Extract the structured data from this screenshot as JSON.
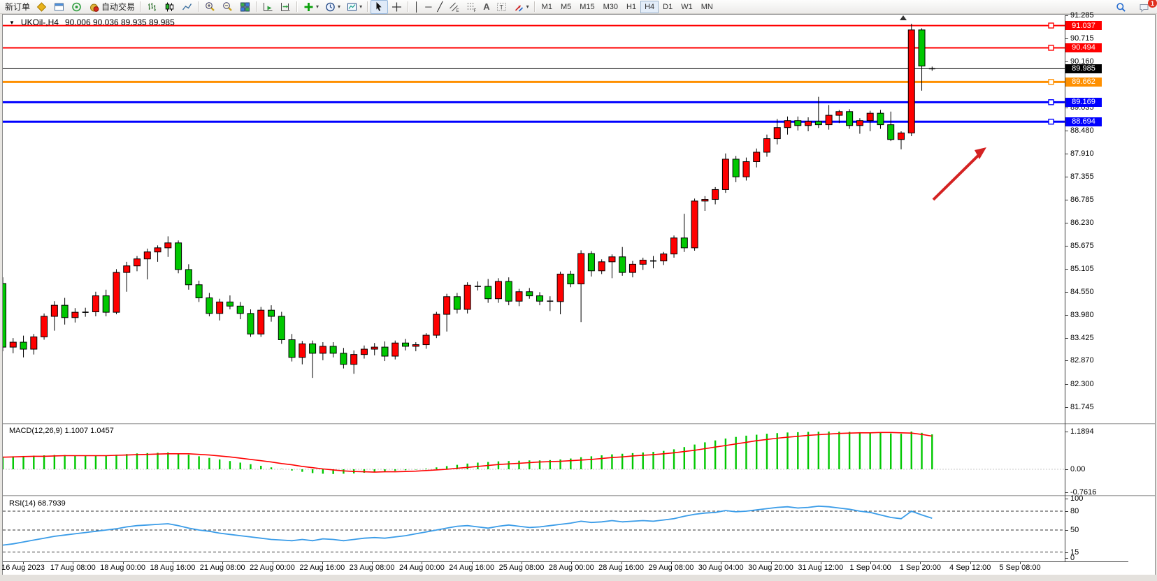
{
  "toolbar": {
    "new_order_label": "新订单",
    "autotrading_label": "自动交易",
    "timeframes": [
      "M1",
      "M5",
      "M15",
      "M30",
      "H1",
      "H4",
      "D1",
      "W1",
      "MN"
    ],
    "active_timeframe": "H4",
    "notification_badge": "1"
  },
  "chart": {
    "symbol_period": "UKOil-,H4",
    "ohlc_text": "90.006 90.036 89.935 89.985",
    "macd_label": "MACD(12,26,9) 1.1007 1.0457",
    "rsi_label": "RSI(14) 68.7939"
  },
  "chart_data": {
    "type": "candlestick",
    "symbol": "UKOil-",
    "period": "H4",
    "current_price": 89.985,
    "up_color": "#ff0000",
    "down_color": "#00c800",
    "price_axis_ticks": [
      "91.285",
      "90.715",
      "90.160",
      "89.605",
      "89.035",
      "88.480",
      "87.910",
      "87.355",
      "86.785",
      "86.230",
      "85.675",
      "85.105",
      "84.550",
      "83.980",
      "83.425",
      "82.870",
      "82.300",
      "81.745"
    ],
    "levels": [
      {
        "price": 91.037,
        "label": "91.037",
        "color": "#ff0000",
        "width": 2,
        "current": false
      },
      {
        "price": 90.494,
        "label": "90.494",
        "color": "#ff0000",
        "width": 2,
        "current": false
      },
      {
        "price": 89.985,
        "label": "89.985",
        "color": "#000000",
        "width": 1,
        "current": true
      },
      {
        "price": 89.662,
        "label": "89.662",
        "color": "#ff9000",
        "width": 3,
        "current": false
      },
      {
        "price": 89.169,
        "label": "89.169",
        "color": "#0000ff",
        "width": 3,
        "current": false
      },
      {
        "price": 88.694,
        "label": "88.694",
        "color": "#0000ff",
        "width": 3,
        "current": false
      }
    ],
    "candles": [
      [
        84.75,
        84.9,
        83.1,
        83.2
      ],
      [
        83.2,
        83.42,
        83.05,
        83.32
      ],
      [
        83.32,
        83.48,
        82.95,
        83.15
      ],
      [
        83.15,
        83.52,
        83.02,
        83.45
      ],
      [
        83.45,
        84.02,
        83.38,
        83.95
      ],
      [
        83.95,
        84.32,
        83.6,
        84.22
      ],
      [
        84.22,
        84.4,
        83.75,
        83.92
      ],
      [
        83.92,
        84.15,
        83.8,
        84.05
      ],
      [
        84.07,
        84.16,
        83.94,
        84.05
      ],
      [
        84.06,
        84.55,
        83.95,
        84.45
      ],
      [
        84.45,
        84.6,
        83.95,
        84.05
      ],
      [
        84.05,
        85.1,
        84.0,
        85.02
      ],
      [
        85.02,
        85.28,
        84.55,
        85.18
      ],
      [
        85.18,
        85.42,
        85.05,
        85.35
      ],
      [
        85.35,
        85.6,
        84.85,
        85.52
      ],
      [
        85.52,
        85.68,
        85.28,
        85.62
      ],
      [
        85.62,
        85.9,
        85.4,
        85.74
      ],
      [
        85.74,
        85.8,
        85.0,
        85.09
      ],
      [
        85.09,
        85.22,
        84.6,
        84.72
      ],
      [
        84.72,
        84.82,
        84.3,
        84.4
      ],
      [
        84.4,
        84.52,
        83.95,
        84.02
      ],
      [
        84.02,
        84.38,
        83.85,
        84.3
      ],
      [
        84.3,
        84.46,
        84.12,
        84.2
      ],
      [
        84.2,
        84.3,
        83.88,
        84.02
      ],
      [
        84.02,
        84.12,
        83.45,
        83.52
      ],
      [
        83.52,
        84.18,
        83.45,
        84.1
      ],
      [
        84.1,
        84.22,
        83.82,
        83.95
      ],
      [
        83.95,
        84.06,
        83.28,
        83.38
      ],
      [
        83.38,
        83.52,
        82.85,
        82.95
      ],
      [
        82.95,
        83.35,
        82.78,
        83.28
      ],
      [
        83.28,
        83.36,
        82.45,
        83.05
      ],
      [
        83.05,
        83.32,
        82.88,
        83.22
      ],
      [
        83.22,
        83.32,
        82.95,
        83.05
      ],
      [
        83.05,
        83.18,
        82.68,
        82.78
      ],
      [
        82.78,
        83.12,
        82.55,
        83.02
      ],
      [
        83.02,
        83.24,
        82.92,
        83.15
      ],
      [
        83.15,
        83.3,
        83.0,
        83.2
      ],
      [
        83.2,
        83.34,
        82.86,
        82.98
      ],
      [
        82.98,
        83.36,
        82.9,
        83.3
      ],
      [
        83.3,
        83.4,
        83.12,
        83.22
      ],
      [
        83.22,
        83.32,
        83.1,
        83.26
      ],
      [
        83.26,
        83.54,
        83.16,
        83.49
      ],
      [
        83.49,
        84.06,
        83.42,
        84.0
      ],
      [
        84.0,
        84.5,
        83.58,
        84.43
      ],
      [
        84.43,
        84.52,
        84.02,
        84.12
      ],
      [
        84.12,
        84.78,
        84.02,
        84.71
      ],
      [
        84.71,
        84.8,
        84.58,
        84.68
      ],
      [
        84.68,
        84.86,
        84.28,
        84.38
      ],
      [
        84.38,
        84.88,
        84.28,
        84.8
      ],
      [
        84.8,
        84.9,
        84.22,
        84.32
      ],
      [
        84.32,
        84.62,
        84.2,
        84.55
      ],
      [
        84.55,
        84.64,
        84.38,
        84.45
      ],
      [
        84.45,
        84.54,
        84.22,
        84.32
      ],
      [
        84.32,
        84.44,
        84.08,
        84.32
      ],
      [
        84.31,
        85.04,
        84.0,
        84.98
      ],
      [
        84.98,
        85.06,
        84.66,
        84.74
      ],
      [
        84.74,
        85.56,
        83.81,
        85.48
      ],
      [
        85.48,
        85.54,
        84.92,
        85.06
      ],
      [
        85.06,
        85.34,
        84.98,
        85.28
      ],
      [
        85.28,
        85.46,
        84.88,
        85.4
      ],
      [
        85.4,
        85.64,
        84.94,
        85.02
      ],
      [
        85.02,
        85.3,
        84.9,
        85.22
      ],
      [
        85.22,
        85.38,
        85.08,
        85.32
      ],
      [
        85.31,
        85.42,
        85.12,
        85.3
      ],
      [
        85.3,
        85.52,
        85.2,
        85.47
      ],
      [
        85.47,
        85.92,
        85.38,
        85.86
      ],
      [
        85.86,
        86.45,
        85.52,
        85.62
      ],
      [
        85.62,
        86.82,
        85.55,
        86.76
      ],
      [
        86.76,
        86.88,
        86.52,
        86.8
      ],
      [
        86.8,
        87.1,
        86.68,
        87.04
      ],
      [
        87.04,
        87.92,
        86.96,
        87.78
      ],
      [
        87.78,
        87.86,
        87.22,
        87.35
      ],
      [
        87.35,
        87.82,
        87.26,
        87.72
      ],
      [
        87.72,
        88.04,
        87.58,
        87.95
      ],
      [
        87.95,
        88.38,
        87.84,
        88.28
      ],
      [
        88.28,
        88.76,
        88.14,
        88.55
      ],
      [
        88.55,
        88.82,
        88.38,
        88.72
      ],
      [
        88.72,
        88.82,
        88.48,
        88.6
      ],
      [
        88.6,
        88.8,
        88.46,
        88.7
      ],
      [
        88.7,
        89.3,
        88.54,
        88.62
      ],
      [
        88.62,
        89.1,
        88.5,
        88.85
      ],
      [
        88.85,
        88.98,
        88.66,
        88.94
      ],
      [
        88.94,
        89.0,
        88.52,
        88.6
      ],
      [
        88.6,
        88.78,
        88.4,
        88.72
      ],
      [
        88.72,
        88.96,
        88.46,
        88.9
      ],
      [
        88.9,
        88.98,
        88.52,
        88.62
      ],
      [
        88.62,
        88.94,
        88.22,
        88.26
      ],
      [
        88.26,
        88.46,
        88.02,
        88.42
      ],
      [
        88.42,
        91.08,
        88.34,
        90.93
      ],
      [
        90.93,
        90.97,
        89.45,
        90.05
      ],
      [
        90.006,
        90.036,
        89.935,
        89.985
      ]
    ],
    "macd": {
      "histogram": [
        0.4,
        0.41,
        0.42,
        0.43,
        0.44,
        0.45,
        0.45,
        0.44,
        0.43,
        0.43,
        0.44,
        0.46,
        0.48,
        0.5,
        0.51,
        0.52,
        0.53,
        0.5,
        0.46,
        0.41,
        0.36,
        0.31,
        0.26,
        0.21,
        0.16,
        0.11,
        0.06,
        0.01,
        -0.04,
        -0.08,
        -0.12,
        -0.14,
        -0.15,
        -0.14,
        -0.13,
        -0.11,
        -0.09,
        -0.07,
        -0.05,
        -0.03,
        -0.01,
        0.02,
        0.06,
        0.1,
        0.14,
        0.18,
        0.21,
        0.23,
        0.25,
        0.26,
        0.27,
        0.28,
        0.28,
        0.29,
        0.31,
        0.34,
        0.38,
        0.41,
        0.44,
        0.47,
        0.49,
        0.51,
        0.53,
        0.55,
        0.58,
        0.63,
        0.7,
        0.78,
        0.85,
        0.91,
        0.97,
        1.02,
        1.06,
        1.09,
        1.12,
        1.14,
        1.16,
        1.17,
        1.18,
        1.185,
        1.19,
        1.185,
        1.18,
        1.17,
        1.16,
        1.15,
        1.13,
        1.12,
        1.19,
        1.15,
        1.1007
      ],
      "signal": [
        0.38,
        0.39,
        0.4,
        0.41,
        0.41,
        0.42,
        0.43,
        0.43,
        0.43,
        0.43,
        0.43,
        0.44,
        0.45,
        0.46,
        0.47,
        0.48,
        0.49,
        0.49,
        0.49,
        0.47,
        0.45,
        0.42,
        0.39,
        0.35,
        0.31,
        0.27,
        0.23,
        0.18,
        0.14,
        0.09,
        0.05,
        0.01,
        -0.02,
        -0.05,
        -0.07,
        -0.08,
        -0.09,
        -0.08,
        -0.08,
        -0.07,
        -0.06,
        -0.04,
        -0.02,
        0.0,
        0.03,
        0.06,
        0.09,
        0.12,
        0.15,
        0.17,
        0.19,
        0.21,
        0.23,
        0.24,
        0.25,
        0.27,
        0.29,
        0.31,
        0.34,
        0.37,
        0.39,
        0.42,
        0.44,
        0.46,
        0.49,
        0.52,
        0.56,
        0.6,
        0.65,
        0.7,
        0.75,
        0.8,
        0.85,
        0.9,
        0.94,
        0.98,
        1.01,
        1.04,
        1.07,
        1.09,
        1.11,
        1.13,
        1.14,
        1.15,
        1.15,
        1.16,
        1.16,
        1.15,
        1.14,
        1.1,
        1.0457
      ],
      "axis_ticks": [
        "1.1894",
        "0.00",
        "-0.7616"
      ],
      "histogram_color": "#00c800",
      "signal_color": "#ff0000"
    },
    "rsi": {
      "values": [
        26,
        28,
        31,
        34,
        37,
        40,
        42,
        44,
        46,
        48,
        50,
        52,
        55,
        57,
        58,
        59,
        60,
        57,
        53,
        50,
        48,
        45,
        43,
        41,
        39,
        37,
        35,
        34,
        33,
        35,
        33,
        36,
        35,
        33,
        35,
        37,
        38,
        37,
        39,
        41,
        44,
        47,
        50,
        53,
        56,
        57,
        55,
        53,
        56,
        58,
        56,
        54,
        55,
        57,
        59,
        61,
        64,
        62,
        63,
        65,
        63,
        64,
        65,
        64,
        66,
        68,
        72,
        75,
        77,
        78,
        81,
        79,
        80,
        82,
        84,
        86,
        87,
        85,
        86,
        88,
        87,
        85,
        83,
        80,
        78,
        74,
        70,
        68,
        80,
        74,
        68.79
      ],
      "axis_ticks": [
        "100",
        "80",
        "50",
        "15",
        "0"
      ],
      "level_lines": [
        80,
        50,
        15
      ],
      "line_color": "#3a9ce8"
    },
    "date_labels": [
      "16 Aug 2023",
      "17 Aug 08:00",
      "18 Aug 00:00",
      "18 Aug 16:00",
      "21 Aug 08:00",
      "22 Aug 00:00",
      "22 Aug 16:00",
      "23 Aug 08:00",
      "24 Aug 00:00",
      "24 Aug 16:00",
      "25 Aug 08:00",
      "28 Aug 00:00",
      "28 Aug 16:00",
      "29 Aug 08:00",
      "30 Aug 04:00",
      "30 Aug 20:00",
      "31 Aug 12:00",
      "1 Sep 04:00",
      "1 Sep 20:00",
      "4 Sep 12:00",
      "5 Sep 08:00"
    ],
    "annotation_arrow": {
      "color": "#d42222"
    }
  }
}
